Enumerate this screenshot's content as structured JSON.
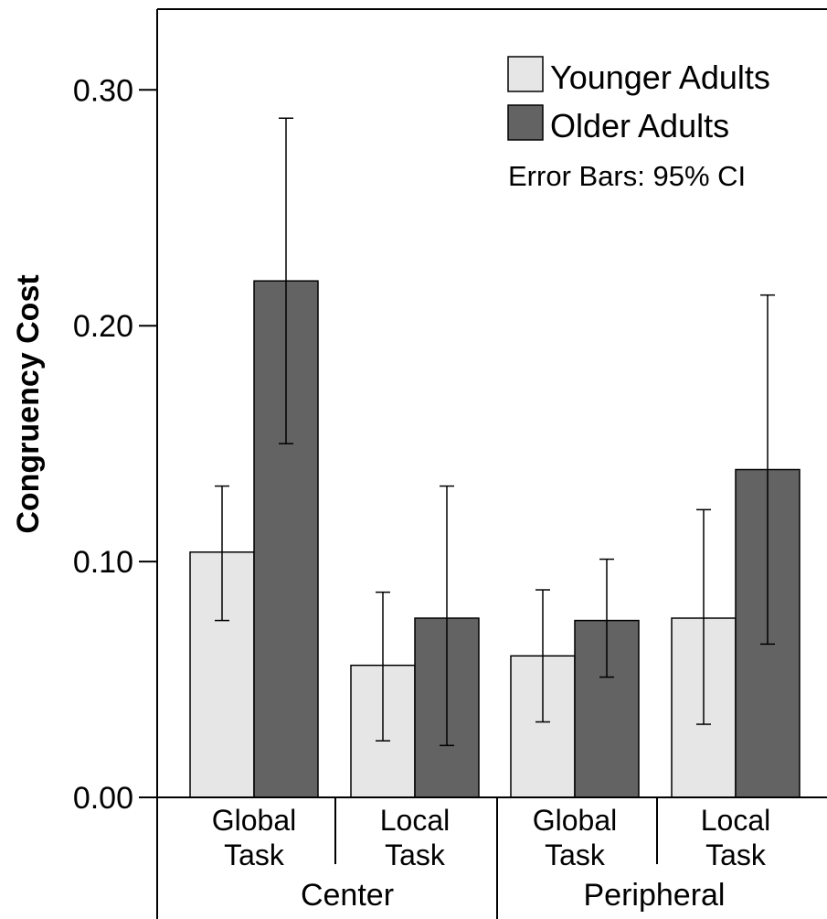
{
  "chart_data": {
    "type": "bar",
    "ylabel": "Congruency Cost",
    "ylim": [
      0,
      0.33
    ],
    "yticks": [
      "0.00",
      "0.10",
      "0.20",
      "0.30"
    ],
    "ytick_values": [
      0,
      0.1,
      0.2,
      0.3
    ],
    "categories": [
      {
        "line1": "Global",
        "line2": "Task",
        "group": "Center"
      },
      {
        "line1": "Local",
        "line2": "Task",
        "group": "Center"
      },
      {
        "line1": "Global",
        "line2": "Task",
        "group": "Peripheral"
      },
      {
        "line1": "Local",
        "line2": "Task",
        "group": "Peripheral"
      }
    ],
    "groups": [
      "Center",
      "Peripheral"
    ],
    "series": [
      {
        "name": "Younger Adults",
        "color": "#e6e6e6",
        "values": [
          0.104,
          0.056,
          0.06,
          0.076
        ],
        "ci_low": [
          0.075,
          0.024,
          0.032,
          0.031
        ],
        "ci_high": [
          0.132,
          0.087,
          0.088,
          0.122
        ]
      },
      {
        "name": "Older Adults",
        "color": "#636363",
        "values": [
          0.219,
          0.076,
          0.075,
          0.139
        ],
        "ci_low": [
          0.15,
          0.022,
          0.051,
          0.065
        ],
        "ci_high": [
          0.288,
          0.132,
          0.101,
          0.213
        ]
      }
    ],
    "legend_position": "top-right",
    "annotation": "Error Bars: 95% CI",
    "grid": false
  }
}
